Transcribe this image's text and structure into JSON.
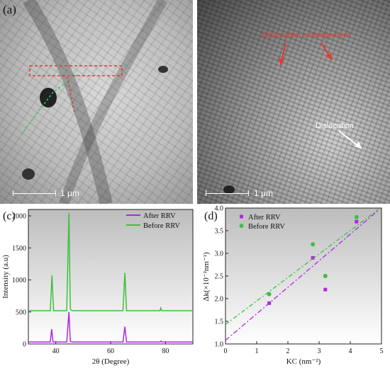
{
  "panel_a": {
    "letter": "(a)",
    "scale_label": "1 μm"
  },
  "panel_b": {
    "scale_label": "1 μm",
    "annotation_red": "Dislocation entanglement",
    "annotation_white": "Dislocation"
  },
  "colors": {
    "after": "#b026e6",
    "before": "#3fbf3f",
    "red_annot": "#e53935"
  },
  "chart_data": [
    {
      "type": "line",
      "panel_letter": "(c)",
      "xlabel": "2θ (Degree)",
      "ylabel": "Intensity (a.u)",
      "xlim": [
        30,
        90
      ],
      "ylim": [
        0,
        2100
      ],
      "xticks": [
        40,
        60,
        80
      ],
      "yticks": [
        0,
        500,
        1000,
        1500,
        2000
      ],
      "legend_position": "top-right",
      "series": [
        {
          "name": "After RRV",
          "color": "#b026e6",
          "x": [
            30,
            38,
            38.5,
            39,
            44,
            44.8,
            45.3,
            46,
            64.5,
            65.2,
            65.8,
            78,
            78.3,
            78.6,
            90
          ],
          "y": [
            30,
            30,
            230,
            30,
            30,
            500,
            40,
            30,
            30,
            270,
            30,
            30,
            45,
            30,
            30
          ]
        },
        {
          "name": "Before RRV",
          "color": "#3fbf3f",
          "x": [
            30,
            38,
            38.6,
            39.2,
            44,
            44.8,
            45.3,
            46,
            64.5,
            65.2,
            65.8,
            78,
            78.3,
            78.6,
            90
          ],
          "y": [
            520,
            520,
            1070,
            520,
            520,
            2050,
            540,
            520,
            520,
            1110,
            520,
            520,
            560,
            520,
            520
          ]
        }
      ]
    },
    {
      "type": "scatter",
      "panel_letter": "(d)",
      "xlabel": "KC (nm⁻²)",
      "ylabel": "Δk(×10⁻²nm⁻¹)",
      "xlim": [
        0,
        5
      ],
      "ylim": [
        1.0,
        4.0
      ],
      "xticks": [
        0,
        1,
        2,
        3,
        4,
        5
      ],
      "yticks": [
        1.0,
        1.5,
        2.0,
        2.5,
        3.0,
        3.5,
        4.0
      ],
      "legend_position": "top-left",
      "series": [
        {
          "name": "After RRV",
          "marker": "square",
          "color": "#b026e6",
          "x": [
            1.4,
            2.8,
            3.2,
            4.2
          ],
          "y": [
            1.9,
            2.9,
            2.2,
            3.7
          ],
          "fit": {
            "x": [
              0,
              4.9
            ],
            "y": [
              1.08,
              3.95
            ]
          }
        },
        {
          "name": "Before RRV",
          "marker": "circle",
          "color": "#3fbf3f",
          "x": [
            1.4,
            2.8,
            3.2,
            4.2
          ],
          "y": [
            2.1,
            3.2,
            2.5,
            3.8
          ],
          "fit": {
            "x": [
              0,
              4.9
            ],
            "y": [
              1.43,
              3.97
            ]
          }
        }
      ]
    }
  ]
}
